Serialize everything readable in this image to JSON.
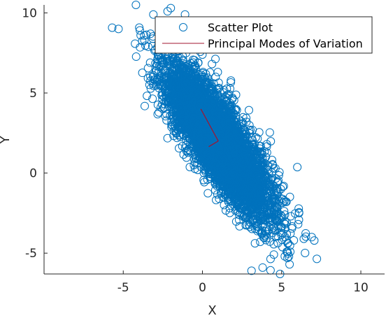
{
  "chart_data": {
    "type": "scatter",
    "xlabel": "X",
    "ylabel": "Y",
    "xlim": [
      -10,
      11.5
    ],
    "ylim": [
      -6.3,
      10.5
    ],
    "x_ticks": [
      -5,
      0,
      5,
      10
    ],
    "y_ticks": [
      -5,
      0,
      5,
      10
    ],
    "x_tick_labels": [
      "-5",
      "0",
      "5",
      "10"
    ],
    "y_tick_labels": [
      "-5",
      "0",
      "5",
      "10"
    ],
    "grid": false,
    "legend_placement": "top-right",
    "legend": [
      "Scatter Plot",
      "Principal Modes of Variation"
    ],
    "series": [
      {
        "name": "Scatter Plot",
        "kind": "scatter",
        "marker": "circle-open",
        "color": "#0072BD",
        "distribution": {
          "center": [
            1,
            2
          ],
          "major_axis_direction": [
            -0.55,
            0.835
          ],
          "major_std": 2.65,
          "minor_std": 0.78,
          "n_points": 6000
        },
        "outliers": [
          [
            -5.3,
            9.0
          ],
          [
            -4.2,
            10.5
          ],
          [
            -2.2,
            10.1
          ],
          [
            -2.0,
            10.3
          ],
          [
            -1.1,
            9.9
          ],
          [
            -3.9,
            8.6
          ],
          [
            -3.1,
            9.9
          ],
          [
            3.1,
            -6.1
          ],
          [
            3.8,
            -5.9
          ],
          [
            4.9,
            -6.3
          ],
          [
            5.5,
            -5.7
          ],
          [
            6.1,
            -2.5
          ],
          [
            6.9,
            -4.0
          ],
          [
            6.4,
            -4.1
          ],
          [
            5.2,
            -5.2
          ]
        ]
      },
      {
        "name": "Principal Modes of Variation",
        "kind": "line",
        "color": "#A2142F",
        "segments": [
          [
            [
              1,
              2
            ],
            [
              -0.1,
              4.0
            ]
          ],
          [
            [
              1,
              2
            ],
            [
              0.4,
              1.65
            ]
          ]
        ]
      }
    ]
  }
}
